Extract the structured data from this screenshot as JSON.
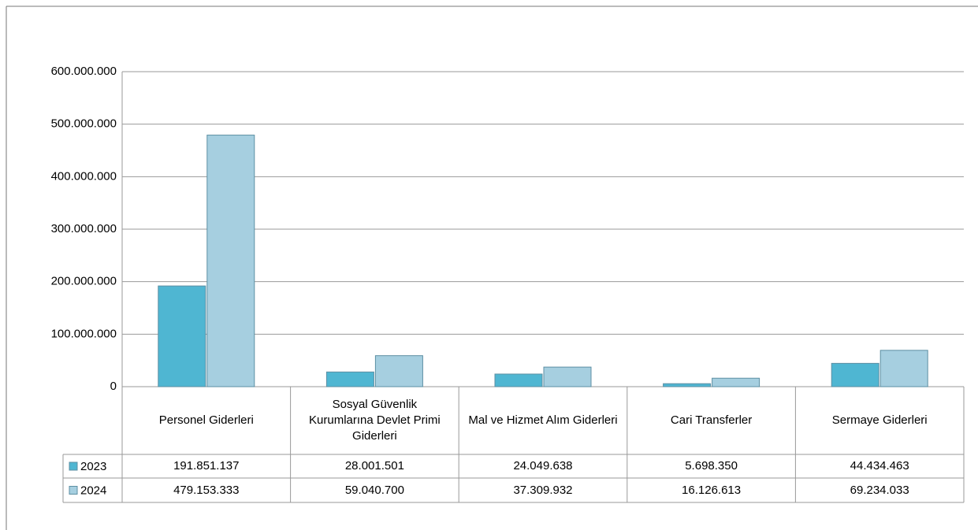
{
  "chart_data": {
    "type": "bar",
    "categories": [
      "Personel Giderleri",
      "Sosyal Güvenlik Kurumlarına Devlet Primi Giderleri",
      "Mal ve Hizmet Alım Giderleri",
      "Cari Transferler",
      "Sermaye Giderleri"
    ],
    "series": [
      {
        "name": "2023",
        "color": "#4fb6d2",
        "values": [
          191851137,
          28001501,
          24049638,
          5698350,
          44434463
        ],
        "value_labels": [
          "191.851.137",
          "28.001.501",
          "24.049.638",
          "5.698.350",
          "44.434.463"
        ]
      },
      {
        "name": "2024",
        "color": "#a6cfe0",
        "values": [
          479153333,
          59040700,
          37309932,
          16126613,
          69234033
        ],
        "value_labels": [
          "479.153.333",
          "59.040.700",
          "37.309.932",
          "16.126.613",
          "69.234.033"
        ]
      }
    ],
    "ylim": [
      0,
      600000000
    ],
    "yticks": [
      0,
      {
        "value": 100000000,
        "label": "100.000.000"
      },
      {
        "value": 200000000,
        "label": "200.000.000"
      },
      {
        "value": 300000000,
        "label": "300.000.000"
      },
      {
        "value": 400000000,
        "label": "400.000.000"
      },
      {
        "value": 500000000,
        "label": "500.000.000"
      },
      {
        "value": 600000000,
        "label": "600.000.000"
      }
    ],
    "grid": true
  }
}
